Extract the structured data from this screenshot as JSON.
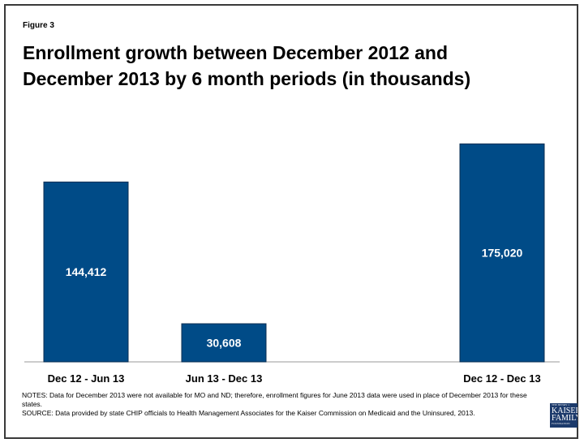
{
  "figure_label": "Figure 3",
  "title": "Enrollment growth between December 2012 and December 2013 by 6 month periods (in thousands)",
  "notes": {
    "notes_line": "NOTES: Data for December 2013 were not available for MO and ND; therefore, enrollment figures for June 2013 data were used in place of December 2013 for these states.",
    "source_line": "SOURCE: Data provided by state CHIP officials to Health Management Associates for the Kaiser Commission on Medicaid and the Uninsured, 2013."
  },
  "logo": {
    "line1": "THE HENRY J.",
    "line2": "KAISER",
    "line3": "FAMILY",
    "line4": "FOUNDATION"
  },
  "colors": {
    "bar": "#004b87",
    "bar_stroke": "#0a2d52",
    "label_text": "#ffffff"
  },
  "chart_data": {
    "type": "bar",
    "title": "Enrollment growth between December 2012 and December 2013 by 6 month periods (in thousands)",
    "categories": [
      "Dec 12 - Jun 13",
      "Jun 13 - Dec 13",
      "Dec 12 - Dec 13"
    ],
    "values": [
      144412,
      30608,
      175020
    ],
    "data_labels": [
      "144,412",
      "30,608",
      "175,020"
    ],
    "xlabel": "",
    "ylabel": "",
    "ylim": [
      0,
      185000
    ],
    "grid": false,
    "legend": "none"
  }
}
